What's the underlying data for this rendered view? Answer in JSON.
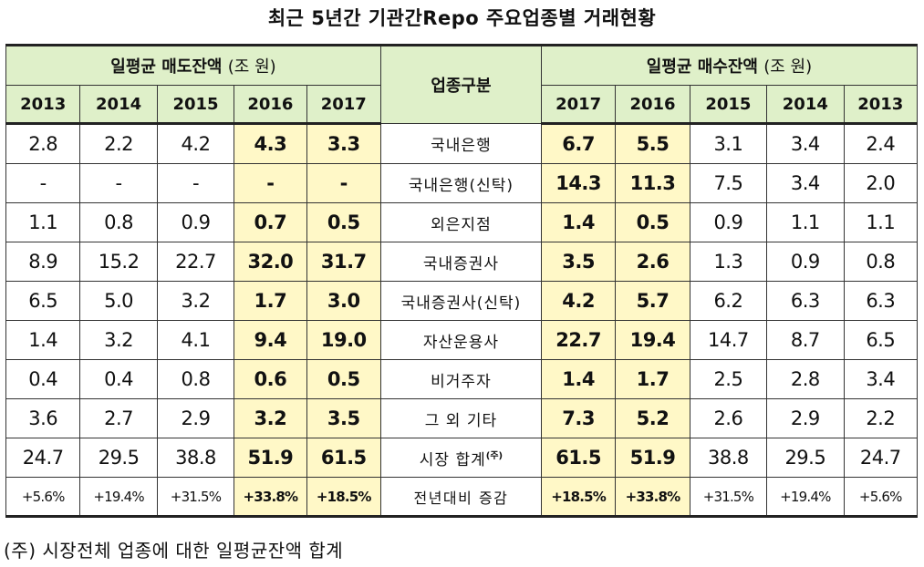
{
  "title": "최근 5년간 기관간Repo 주요업종별 거래현황",
  "header": {
    "sell_group": "일평균 매도잔액",
    "buy_group": "일평균 매수잔액",
    "unit": "(조 원)",
    "category": "업종구분",
    "sell_years": [
      "2013",
      "2014",
      "2015",
      "2016",
      "2017"
    ],
    "buy_years": [
      "2017",
      "2016",
      "2015",
      "2014",
      "2013"
    ]
  },
  "rows": [
    {
      "category": "국내은행",
      "note": "",
      "sell": [
        "2.8",
        "2.2",
        "4.2",
        "4.3",
        "3.3"
      ],
      "buy": [
        "6.7",
        "5.5",
        "3.1",
        "3.4",
        "2.4"
      ]
    },
    {
      "category": "국내은행(신탁)",
      "note": "",
      "sell": [
        "-",
        "-",
        "-",
        "-",
        "-"
      ],
      "buy": [
        "14.3",
        "11.3",
        "7.5",
        "3.4",
        "2.0"
      ]
    },
    {
      "category": "외은지점",
      "note": "",
      "sell": [
        "1.1",
        "0.8",
        "0.9",
        "0.7",
        "0.5"
      ],
      "buy": [
        "1.4",
        "0.5",
        "0.9",
        "1.1",
        "1.1"
      ]
    },
    {
      "category": "국내증권사",
      "note": "",
      "sell": [
        "8.9",
        "15.2",
        "22.7",
        "32.0",
        "31.7"
      ],
      "buy": [
        "3.5",
        "2.6",
        "1.3",
        "0.9",
        "0.8"
      ]
    },
    {
      "category": "국내증권사(신탁)",
      "note": "",
      "sell": [
        "6.5",
        "5.0",
        "3.2",
        "1.7",
        "3.0"
      ],
      "buy": [
        "4.2",
        "5.7",
        "6.2",
        "6.3",
        "6.3"
      ]
    },
    {
      "category": "자산운용사",
      "note": "",
      "sell": [
        "1.4",
        "3.2",
        "4.1",
        "9.4",
        "19.0"
      ],
      "buy": [
        "22.7",
        "19.4",
        "14.7",
        "8.7",
        "6.5"
      ]
    },
    {
      "category": "비거주자",
      "note": "",
      "sell": [
        "0.4",
        "0.4",
        "0.8",
        "0.6",
        "0.5"
      ],
      "buy": [
        "1.4",
        "1.7",
        "2.5",
        "2.8",
        "3.4"
      ]
    },
    {
      "category": "그 외 기타",
      "note": "",
      "sell": [
        "3.6",
        "2.7",
        "2.9",
        "3.2",
        "3.5"
      ],
      "buy": [
        "7.3",
        "5.2",
        "2.6",
        "2.9",
        "2.2"
      ]
    },
    {
      "category": "시장 합계",
      "note": "(주)",
      "sell": [
        "24.7",
        "29.5",
        "38.8",
        "51.9",
        "61.5"
      ],
      "buy": [
        "61.5",
        "51.9",
        "38.8",
        "29.5",
        "24.7"
      ]
    },
    {
      "category": "전년대비 증감",
      "note": "",
      "pct": true,
      "sell": [
        "+5.6%",
        "+19.4%",
        "+31.5%",
        "+33.8%",
        "+18.5%"
      ],
      "buy": [
        "+18.5%",
        "+33.8%",
        "+31.5%",
        "+19.4%",
        "+5.6%"
      ]
    }
  ],
  "footnote": "(주) 시장전체 업종에 대한 일평균잔액 합계",
  "colors": {
    "header_bg": "#dff0c9",
    "highlight_bg": "#fff8c7"
  }
}
